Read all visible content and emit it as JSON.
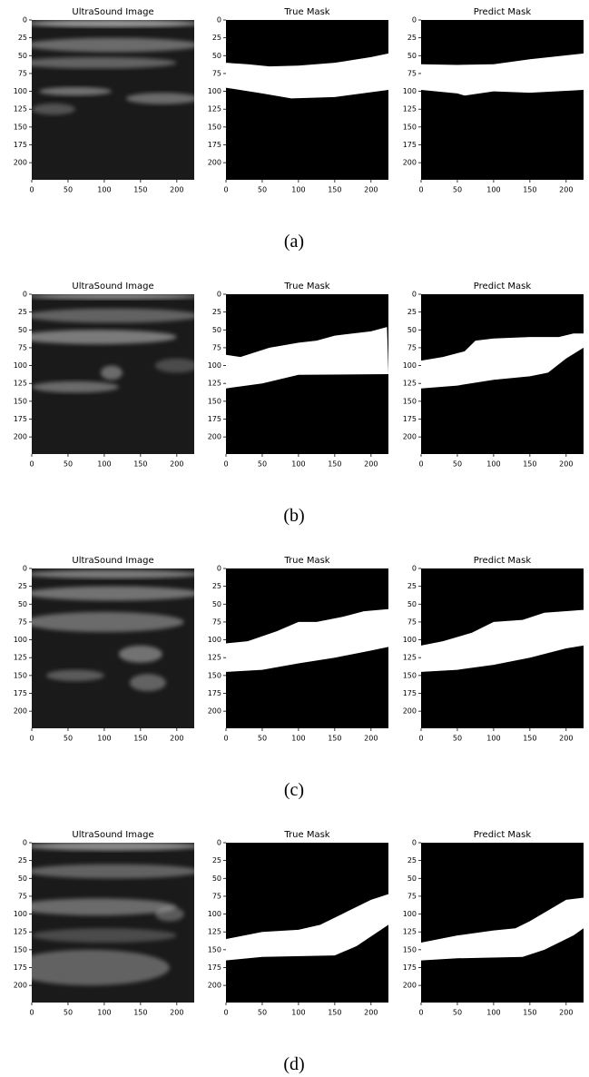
{
  "figure": {
    "rows": [
      {
        "caption": "(a)",
        "panels": [
          {
            "title": "UltraSound Image"
          },
          {
            "title": "True Mask"
          },
          {
            "title": "Predict Mask"
          }
        ]
      },
      {
        "caption": "(b)",
        "panels": [
          {
            "title": "UltraSound Image"
          },
          {
            "title": "True Mask"
          },
          {
            "title": "Predict Mask"
          }
        ]
      },
      {
        "caption": "(c)",
        "panels": [
          {
            "title": "UltraSound Image"
          },
          {
            "title": "True Mask"
          },
          {
            "title": "Predict Mask"
          }
        ]
      },
      {
        "caption": "(d)",
        "panels": [
          {
            "title": "UltraSound Image"
          },
          {
            "title": "True Mask"
          },
          {
            "title": "Predict Mask"
          }
        ]
      }
    ],
    "axes": {
      "xlim": [
        0,
        224
      ],
      "ylim": [
        0,
        224
      ],
      "xticks": [
        0,
        50,
        100,
        150,
        200
      ],
      "yticks": [
        0,
        25,
        50,
        75,
        100,
        125,
        150,
        175,
        200
      ]
    }
  }
}
